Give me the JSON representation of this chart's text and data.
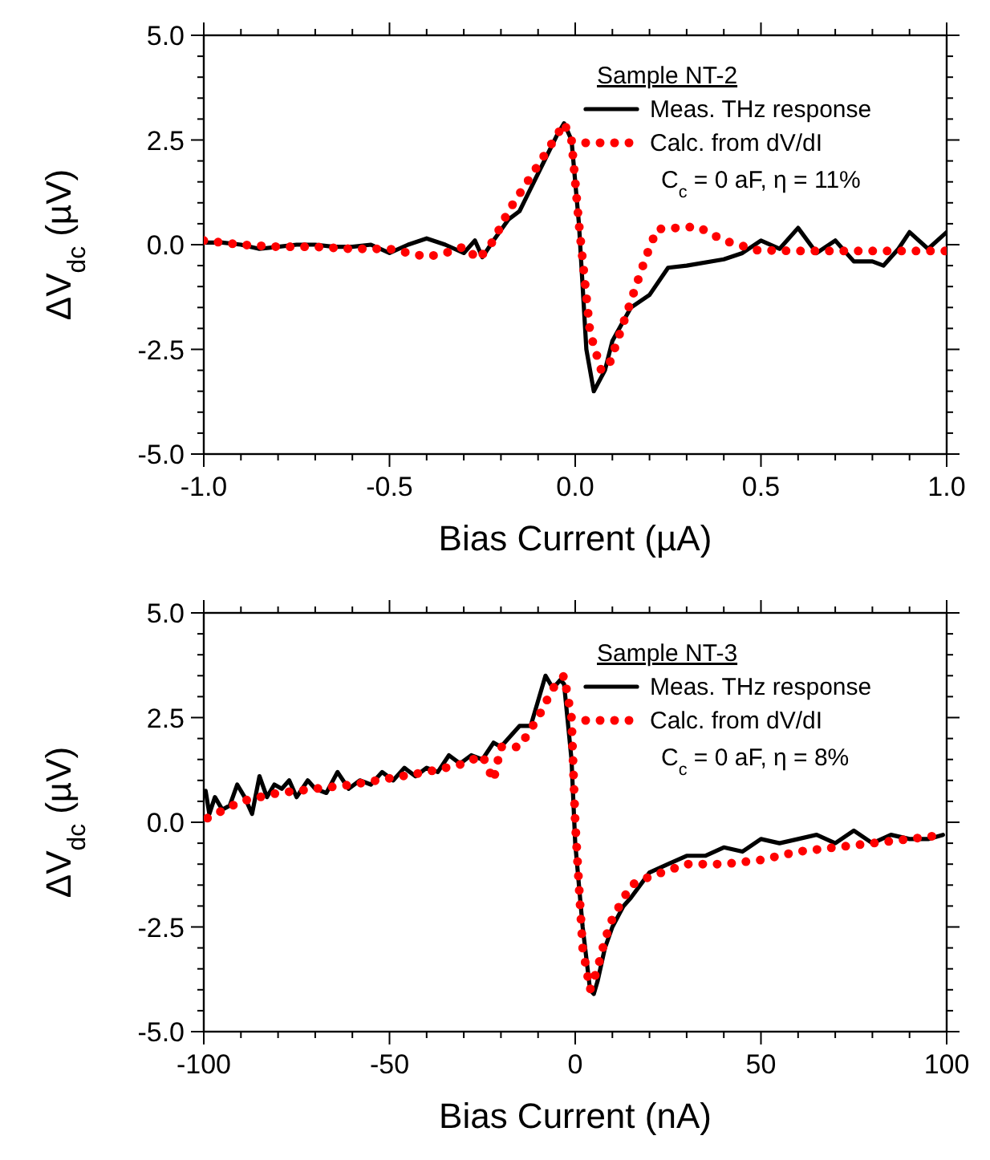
{
  "chart_data": [
    {
      "type": "line",
      "xlabel": "Bias Current (µA)",
      "ylabel": "ΔV$_{dc}$ (µV)",
      "legend_title": "Sample NT-2",
      "legend": "top right",
      "grid": false,
      "annotations": [
        "C$_{c}$ = 0 aF, η = 11%"
      ],
      "xlim": [
        -1,
        1
      ],
      "ylim": [
        -5,
        5
      ],
      "xticks": [
        {
          "value": -1,
          "label": "-1.0"
        },
        {
          "value": -0.9,
          "label": null
        },
        {
          "value": -0.8,
          "label": null
        },
        {
          "value": -0.7,
          "label": null
        },
        {
          "value": -0.6,
          "label": null
        },
        {
          "value": -0.5,
          "label": "-0.5"
        },
        {
          "value": -0.4,
          "label": null
        },
        {
          "value": -0.3,
          "label": null
        },
        {
          "value": -0.2,
          "label": null
        },
        {
          "value": -0.1,
          "label": null
        },
        {
          "value": 0,
          "label": "0.0"
        },
        {
          "value": 0.1,
          "label": null
        },
        {
          "value": 0.2,
          "label": null
        },
        {
          "value": 0.3,
          "label": null
        },
        {
          "value": 0.4,
          "label": null
        },
        {
          "value": 0.5,
          "label": "0.5"
        },
        {
          "value": 0.6,
          "label": null
        },
        {
          "value": 0.7,
          "label": null
        },
        {
          "value": 0.8,
          "label": null
        },
        {
          "value": 0.9,
          "label": null
        },
        {
          "value": 1,
          "label": "1.0"
        }
      ],
      "yticks": [
        {
          "value": -5,
          "label": "-5.0"
        },
        {
          "value": -4.5,
          "label": null
        },
        {
          "value": -4,
          "label": null
        },
        {
          "value": -3.5,
          "label": null
        },
        {
          "value": -3,
          "label": null
        },
        {
          "value": -2.5,
          "label": "-2.5"
        },
        {
          "value": -2,
          "label": null
        },
        {
          "value": -1.5,
          "label": null
        },
        {
          "value": -1,
          "label": null
        },
        {
          "value": -0.5,
          "label": null
        },
        {
          "value": 0,
          "label": "0.0"
        },
        {
          "value": 0.5,
          "label": null
        },
        {
          "value": 1,
          "label": null
        },
        {
          "value": 1.5,
          "label": null
        },
        {
          "value": 2,
          "label": null
        },
        {
          "value": 2.5,
          "label": "2.5"
        },
        {
          "value": 3,
          "label": null
        },
        {
          "value": 3.5,
          "label": null
        },
        {
          "value": 4,
          "label": null
        },
        {
          "value": 4.5,
          "label": null
        },
        {
          "value": 5,
          "label": "5.0"
        }
      ],
      "series": [
        {
          "name": "Meas. THz response",
          "color": "#000000",
          "line_style": "solid",
          "x": [
            -1,
            -0.95,
            -0.9,
            -0.85,
            -0.8,
            -0.75,
            -0.7,
            -0.65,
            -0.6,
            -0.55,
            -0.5,
            -0.45,
            -0.4,
            -0.35,
            -0.3,
            -0.27,
            -0.25,
            -0.22,
            -0.18,
            -0.15,
            -0.1,
            -0.05,
            -0.03,
            -0.01,
            0.01,
            0.03,
            0.05,
            0.08,
            0.1,
            0.15,
            0.2,
            0.25,
            0.3,
            0.4,
            0.45,
            0.5,
            0.55,
            0.6,
            0.65,
            0.7,
            0.75,
            0.8,
            0.83,
            0.87,
            0.9,
            0.95,
            1
          ],
          "values": [
            0.05,
            0.05,
            0,
            -0.1,
            -0.05,
            0,
            0,
            -0.05,
            -0.05,
            0,
            -0.2,
            0,
            0.15,
            0,
            -0.2,
            0.1,
            -0.3,
            0.1,
            0.6,
            0.8,
            1.7,
            2.6,
            2.9,
            2.5,
            0.5,
            -2.5,
            -3.5,
            -3.0,
            -2.3,
            -1.5,
            -1.2,
            -0.55,
            -0.5,
            -0.35,
            -0.2,
            0.1,
            -0.1,
            0.4,
            -0.2,
            0.1,
            -0.4,
            -0.4,
            -0.5,
            -0.1,
            0.3,
            -0.1,
            0.3
          ]
        },
        {
          "name": "Calc. from dV/dI",
          "color": "#ff0000",
          "line_style": "dotted",
          "x": [
            -1,
            -0.9,
            -0.8,
            -0.7,
            -0.6,
            -0.5,
            -0.4,
            -0.35,
            -0.3,
            -0.26,
            -0.22,
            -0.18,
            -0.1,
            -0.05,
            -0.03,
            -0.01,
            0.01,
            0.04,
            0.07,
            0.09,
            0.14,
            0.19,
            0.22,
            0.27,
            0.33,
            0.4,
            0.49,
            0.6,
            0.7,
            0.8,
            0.9,
            1
          ],
          "values": [
            0.1,
            0,
            -0.05,
            -0.05,
            -0.1,
            -0.1,
            -0.29,
            -0.2,
            -0.05,
            -0.35,
            0.1,
            0.8,
            1.9,
            2.6,
            2.9,
            2.5,
            0.5,
            -2.1,
            -3.0,
            -2.9,
            -1.6,
            -0.3,
            0.37,
            0.4,
            0.43,
            0.1,
            -0.13,
            -0.15,
            -0.15,
            -0.15,
            -0.15,
            -0.15
          ]
        }
      ]
    },
    {
      "type": "line",
      "xlabel": "Bias Current (nA)",
      "ylabel": "ΔV$_{dc}$ (µV)",
      "legend_title": "Sample NT-3",
      "legend": "top right",
      "grid": false,
      "annotations": [
        "C$_{c}$ = 0 aF, η = 8%"
      ],
      "xlim": [
        -100,
        100
      ],
      "ylim": [
        -5,
        5
      ],
      "xticks": [
        {
          "value": -100,
          "label": "-100"
        },
        {
          "value": -90,
          "label": null
        },
        {
          "value": -80,
          "label": null
        },
        {
          "value": -70,
          "label": null
        },
        {
          "value": -60,
          "label": null
        },
        {
          "value": -50,
          "label": "-50"
        },
        {
          "value": -40,
          "label": null
        },
        {
          "value": -30,
          "label": null
        },
        {
          "value": -20,
          "label": null
        },
        {
          "value": -10,
          "label": null
        },
        {
          "value": 0,
          "label": "0"
        },
        {
          "value": 10,
          "label": null
        },
        {
          "value": 20,
          "label": null
        },
        {
          "value": 30,
          "label": null
        },
        {
          "value": 40,
          "label": null
        },
        {
          "value": 50,
          "label": "50"
        },
        {
          "value": 60,
          "label": null
        },
        {
          "value": 70,
          "label": null
        },
        {
          "value": 80,
          "label": null
        },
        {
          "value": 90,
          "label": null
        },
        {
          "value": 100,
          "label": "100"
        }
      ],
      "yticks": [
        {
          "value": -5,
          "label": "-5.0"
        },
        {
          "value": -4.5,
          "label": null
        },
        {
          "value": -4,
          "label": null
        },
        {
          "value": -3.5,
          "label": null
        },
        {
          "value": -3,
          "label": null
        },
        {
          "value": -2.5,
          "label": "-2.5"
        },
        {
          "value": -2,
          "label": null
        },
        {
          "value": -1.5,
          "label": null
        },
        {
          "value": -1,
          "label": null
        },
        {
          "value": -0.5,
          "label": null
        },
        {
          "value": 0,
          "label": "0.0"
        },
        {
          "value": 0.5,
          "label": null
        },
        {
          "value": 1,
          "label": null
        },
        {
          "value": 1.5,
          "label": null
        },
        {
          "value": 2,
          "label": null
        },
        {
          "value": 2.5,
          "label": "2.5"
        },
        {
          "value": 3,
          "label": null
        },
        {
          "value": 3.5,
          "label": null
        },
        {
          "value": 4,
          "label": null
        },
        {
          "value": 4.5,
          "label": null
        },
        {
          "value": 5,
          "label": "5.0"
        }
      ],
      "series": [
        {
          "name": "Meas. THz response",
          "color": "#000000",
          "line_style": "solid",
          "x": [
            -99.5,
            -98.5,
            -97,
            -95,
            -93,
            -91,
            -89,
            -87,
            -85,
            -83,
            -81,
            -79,
            -77,
            -75,
            -72,
            -70,
            -67,
            -64,
            -61,
            -58,
            -55,
            -52,
            -49,
            -46,
            -43,
            -40,
            -37,
            -34,
            -31,
            -28,
            -25,
            -22,
            -20,
            -18,
            -15,
            -12,
            -10,
            -8,
            -6,
            -4,
            -3,
            -1,
            0,
            2,
            4,
            5,
            6,
            8,
            10,
            13,
            15,
            20,
            25,
            30,
            35,
            40,
            45,
            50,
            55,
            60,
            65,
            70,
            75,
            80,
            85,
            90,
            95,
            99
          ],
          "values": [
            0.75,
            0.2,
            0.6,
            0.3,
            0.4,
            0.9,
            0.6,
            0.2,
            1.1,
            0.6,
            0.9,
            0.8,
            1.0,
            0.6,
            1.0,
            0.8,
            0.7,
            1.2,
            0.8,
            1.0,
            0.9,
            1.2,
            1.0,
            1.3,
            1.1,
            1.3,
            1.2,
            1.6,
            1.4,
            1.6,
            1.5,
            1.9,
            1.8,
            2.0,
            2.3,
            2.3,
            2.9,
            3.5,
            3.2,
            3.4,
            3.3,
            1.5,
            -0.5,
            -2.5,
            -4.0,
            -4.1,
            -3.8,
            -3.0,
            -2.5,
            -2.0,
            -1.8,
            -1.2,
            -1.0,
            -0.8,
            -0.8,
            -0.6,
            -0.7,
            -0.4,
            -0.5,
            -0.4,
            -0.3,
            -0.5,
            -0.2,
            -0.5,
            -0.3,
            -0.4,
            -0.4,
            -0.3
          ]
        },
        {
          "name": "Calc. from dV/dI",
          "color": "#ff0000",
          "line_style": "dotted",
          "x": [
            -99,
            -90,
            -80,
            -60,
            -40,
            -30,
            -25,
            -22,
            -20,
            -15,
            -10,
            -6,
            -3,
            -1,
            0,
            2,
            4,
            6,
            8,
            10,
            15,
            20,
            30,
            40,
            50,
            60,
            70,
            80,
            90,
            99
          ],
          "values": [
            0.1,
            0.5,
            0.7,
            0.9,
            1.2,
            1.4,
            1.6,
            1.0,
            1.8,
            1.8,
            2.5,
            3.2,
            3.5,
            2.5,
            0,
            -3.0,
            -4.0,
            -3.5,
            -2.8,
            -2.3,
            -1.5,
            -1.3,
            -1.0,
            -1.0,
            -0.9,
            -0.7,
            -0.6,
            -0.5,
            -0.4,
            -0.3
          ]
        }
      ]
    }
  ]
}
